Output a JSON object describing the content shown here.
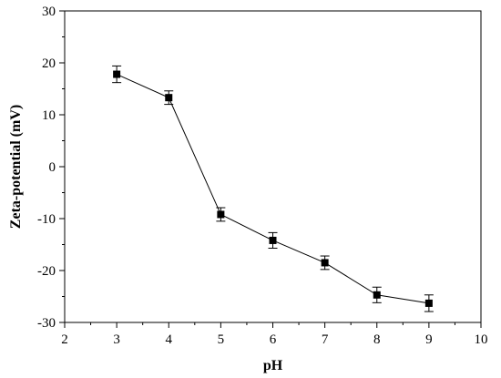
{
  "chart_data": {
    "type": "line",
    "title": "",
    "xlabel": "pH",
    "ylabel": "Zeta-potential (mV)",
    "xlim": [
      2,
      10
    ],
    "ylim": [
      -30,
      30
    ],
    "x_ticks": [
      2,
      3,
      4,
      5,
      6,
      7,
      8,
      9,
      10
    ],
    "y_ticks": [
      -30,
      -20,
      -10,
      0,
      10,
      20,
      30
    ],
    "x_tick_labels": [
      "2",
      "3",
      "4",
      "5",
      "6",
      "7",
      "8",
      "9",
      "10"
    ],
    "y_tick_labels": [
      "-30",
      "-20",
      "-10",
      "0",
      "10",
      "20",
      "30"
    ],
    "grid": false,
    "legend": "none",
    "marker": "square",
    "series": [
      {
        "color": "#000000",
        "x": [
          3,
          4,
          5,
          6,
          7,
          8,
          9
        ],
        "y": [
          17.8,
          13.3,
          -9.2,
          -14.2,
          -18.5,
          -24.7,
          -26.3
        ],
        "error": [
          1.6,
          1.3,
          1.3,
          1.5,
          1.3,
          1.5,
          1.6
        ]
      }
    ]
  }
}
